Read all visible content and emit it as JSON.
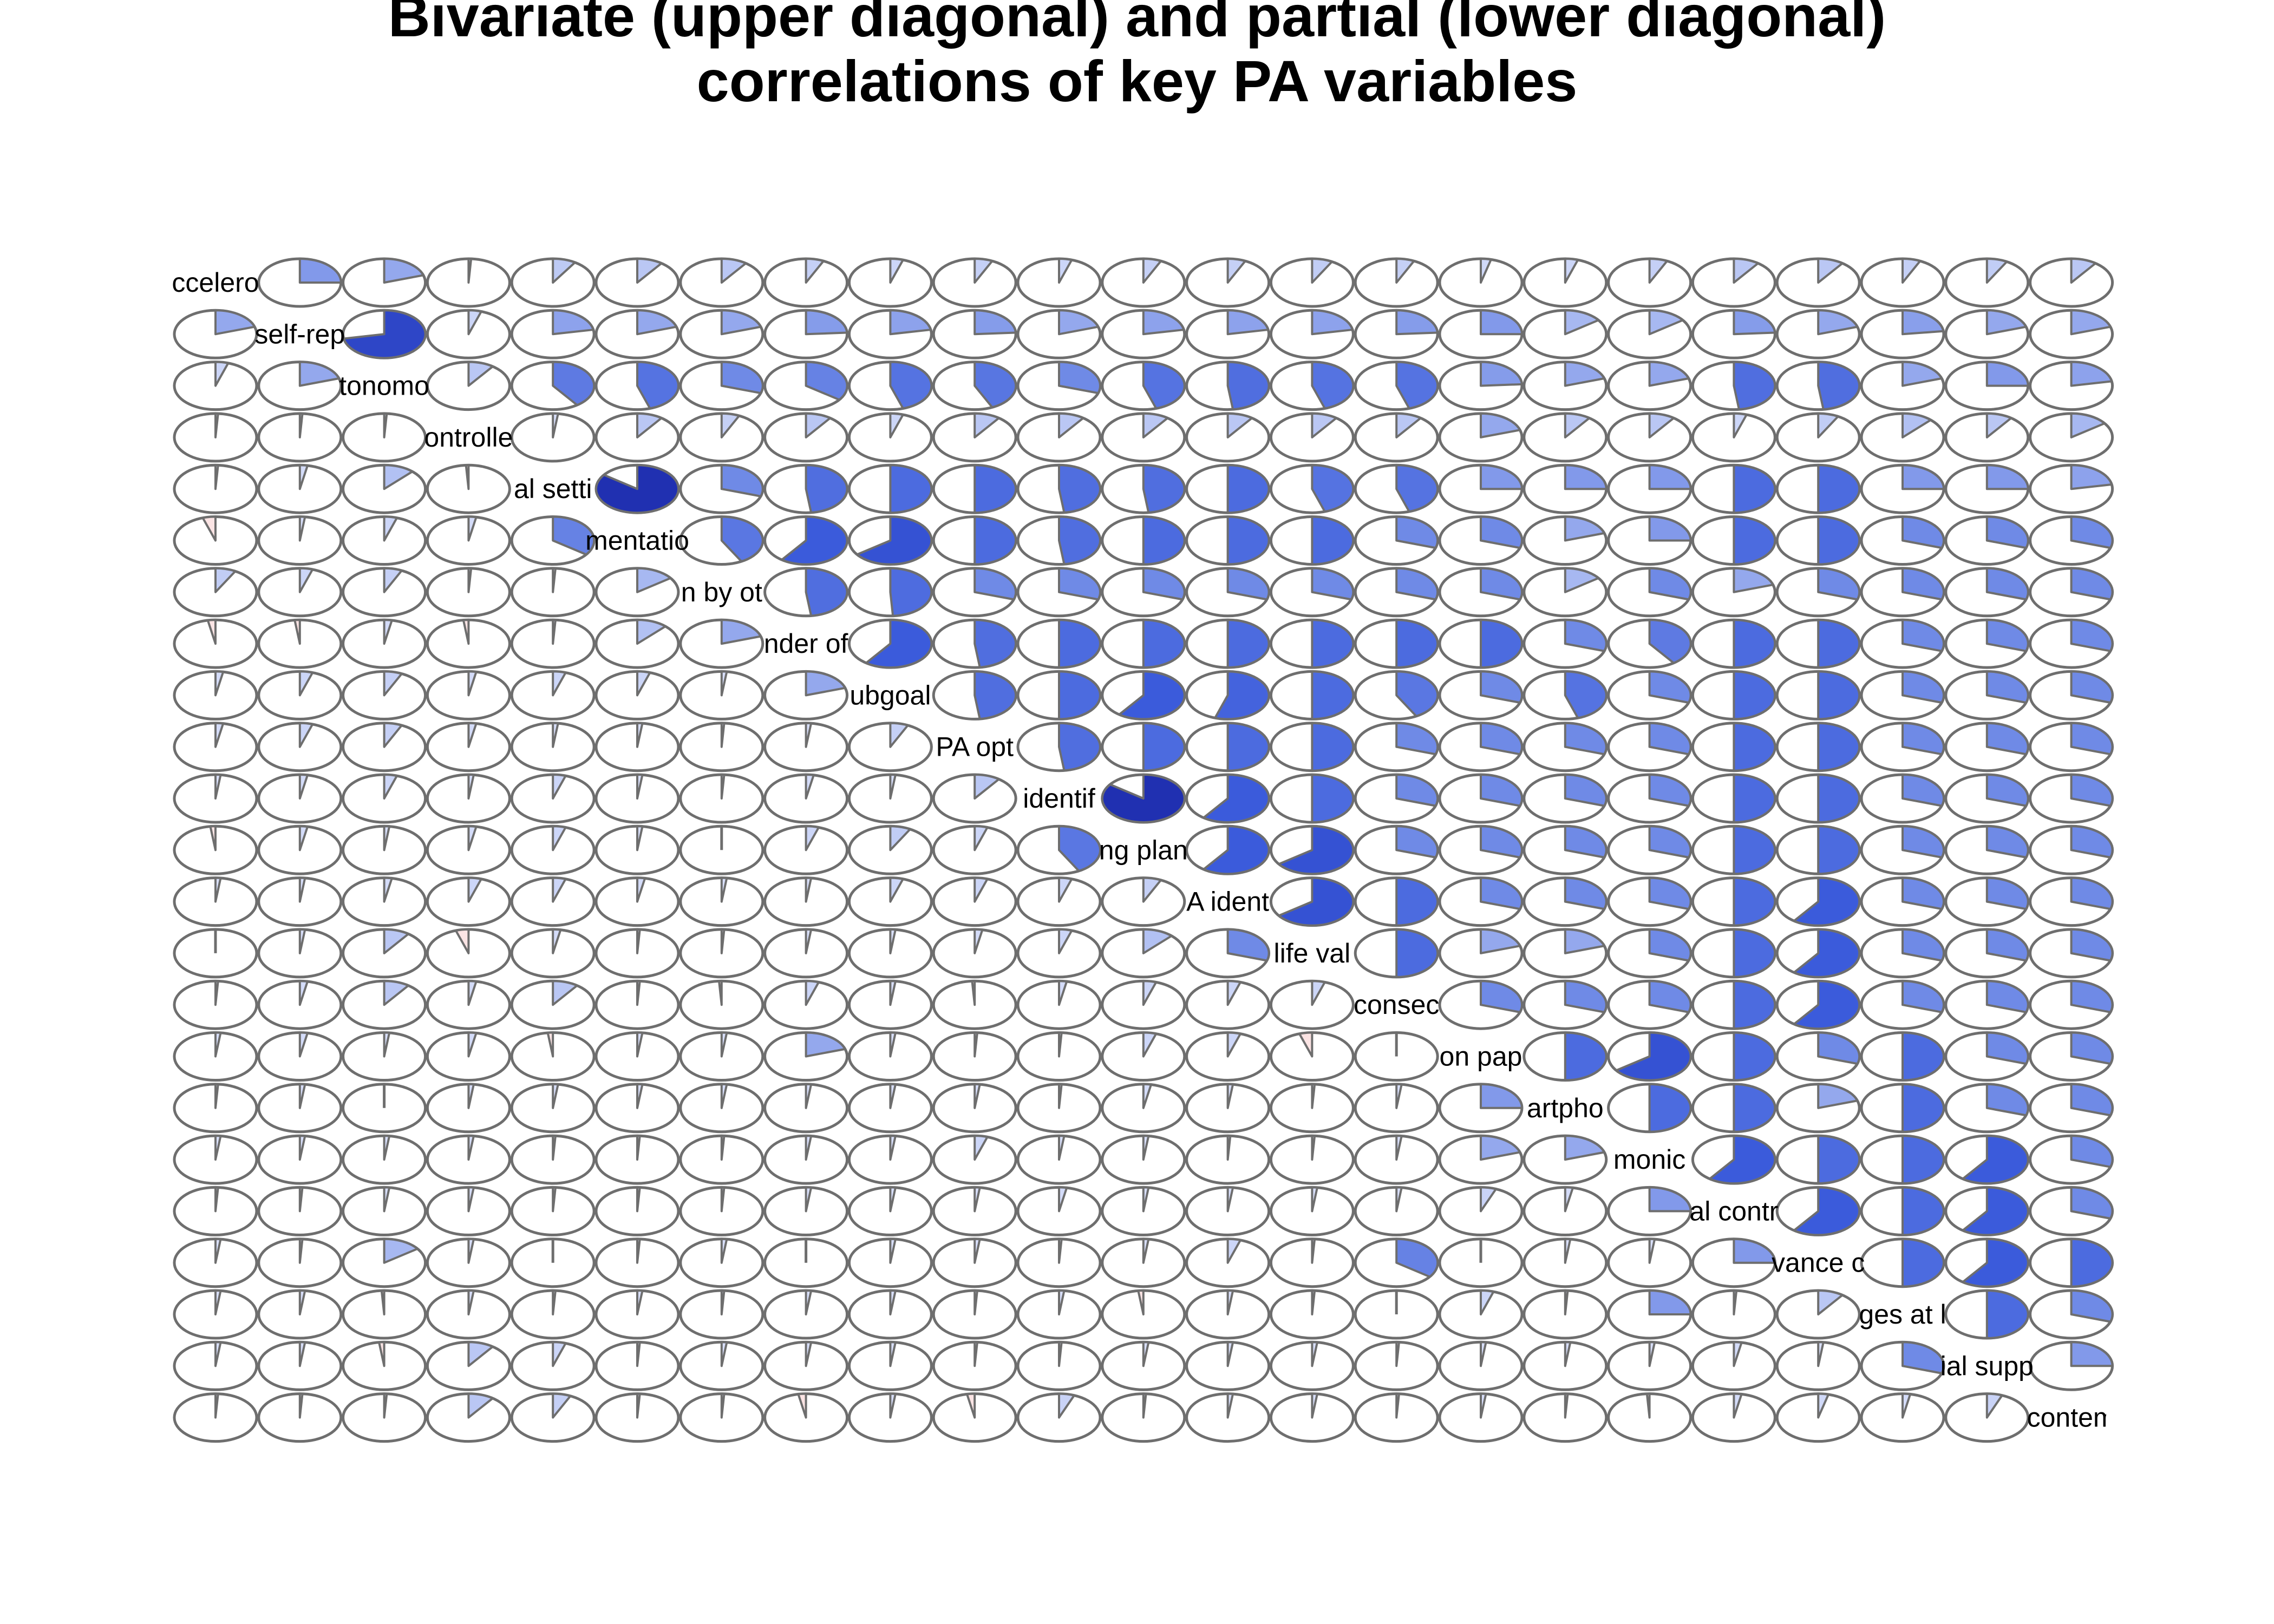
{
  "chart_data": {
    "type": "corrgram-pie",
    "title": [
      "Bivariate (upper diagonal) and partial (lower diagonal)",
      "correlations of key PA variables"
    ],
    "variables": [
      "ccelero",
      "self-rep",
      "tonomo",
      "ontrolle",
      "al setti",
      "mentatio",
      "n by ot",
      "nder of",
      "ubgoal",
      "PA opt",
      "identif",
      "ng plan",
      "A ident",
      "life val",
      "consec",
      "on pap",
      "artpho",
      "monic",
      "al contr",
      "vance c",
      "ges at l",
      "ial supp",
      "contem"
    ],
    "upper_triangle_note": "bivariate correlation; row i, entry k = variable i vs variable i+1+k",
    "upper": [
      [
        0.25,
        0.2,
        0.01,
        0.09,
        0.1,
        0.1,
        0.07,
        0.05,
        0.07,
        0.05,
        0.07,
        0.07,
        0.08,
        0.07,
        0.04,
        0.05,
        0.07,
        0.1,
        0.1,
        0.07,
        0.08,
        0.1
      ],
      [
        0.72,
        0.05,
        0.22,
        0.2,
        0.2,
        0.24,
        0.22,
        0.24,
        0.2,
        0.22,
        0.22,
        0.22,
        0.24,
        0.25,
        0.15,
        0.15,
        0.24,
        0.2,
        0.23,
        0.2,
        0.2,
        0.2
      ],
      [
        0.1,
        0.4,
        0.45,
        0.3,
        0.35,
        0.45,
        0.43,
        0.3,
        0.45,
        0.48,
        0.45,
        0.45,
        0.24,
        0.2,
        0.2,
        0.48,
        0.48,
        0.2,
        0.25,
        0.22,
        0.22
      ],
      [
        0.02,
        0.1,
        0.07,
        0.1,
        0.05,
        0.1,
        0.1,
        0.1,
        0.1,
        0.1,
        0.1,
        0.2,
        0.1,
        0.1,
        0.05,
        0.08,
        0.12,
        0.1,
        0.15,
        0.15,
        0.25
      ],
      [
        0.85,
        0.3,
        0.48,
        0.5,
        0.5,
        0.48,
        0.48,
        0.5,
        0.45,
        0.45,
        0.25,
        0.25,
        0.25,
        0.5,
        0.5,
        0.25,
        0.25,
        0.22,
        0.25
      ],
      [
        0.42,
        0.6,
        0.65,
        0.5,
        0.48,
        0.5,
        0.5,
        0.5,
        0.3,
        0.3,
        0.2,
        0.25,
        0.5,
        0.5,
        0.3,
        0.3,
        0.3,
        0.3
      ],
      [
        0.48,
        0.49,
        0.3,
        0.3,
        0.3,
        0.3,
        0.3,
        0.3,
        0.3,
        0.15,
        0.3,
        0.2,
        0.3,
        0.3,
        0.3,
        0.3,
        0.22
      ],
      [
        0.6,
        0.48,
        0.5,
        0.5,
        0.5,
        0.5,
        0.5,
        0.5,
        0.3,
        0.4,
        0.5,
        0.5,
        0.3,
        0.3,
        0.3,
        0.3
      ],
      [
        0.48,
        0.5,
        0.6,
        0.55,
        0.5,
        0.42,
        0.3,
        0.45,
        0.3,
        0.5,
        0.5,
        0.3,
        0.3,
        0.3,
        0.3
      ],
      [
        0.48,
        0.5,
        0.5,
        0.5,
        0.3,
        0.3,
        0.3,
        0.3,
        0.5,
        0.5,
        0.3,
        0.3,
        0.3,
        0.2
      ],
      [
        0.85,
        0.6,
        0.5,
        0.3,
        0.3,
        0.3,
        0.3,
        0.5,
        0.5,
        0.3,
        0.3,
        0.3,
        0.3
      ],
      [
        0.6,
        0.65,
        0.3,
        0.3,
        0.3,
        0.3,
        0.5,
        0.5,
        0.3,
        0.3,
        0.3,
        0.3
      ],
      [
        0.65,
        0.5,
        0.3,
        0.3,
        0.3,
        0.5,
        0.6,
        0.3,
        0.3,
        0.3,
        0.3
      ],
      [
        0.5,
        0.2,
        0.2,
        0.3,
        0.5,
        0.6,
        0.3,
        0.3,
        0.3,
        0.3
      ],
      [
        0.3,
        0.3,
        0.3,
        0.5,
        0.6,
        0.3,
        0.3,
        0.3,
        0.3
      ],
      [
        0.5,
        0.65,
        0.5,
        0.3,
        0.5,
        0.3,
        0.3,
        0.3
      ],
      [
        0.5,
        0.5,
        0.2,
        0.5,
        0.3,
        0.3,
        0.2
      ],
      [
        0.6,
        0.5,
        0.5,
        0.6,
        0.3
      ],
      [
        0.6,
        0.5,
        0.6,
        0.3
      ],
      [
        0.5,
        0.6,
        0.5
      ],
      [
        0.5,
        0.3
      ],
      [
        0.25
      ]
    ],
    "lower_triangle_note": "partial correlation; row i, entry j = variable i vs variable j (j < i)",
    "lower": [
      [],
      [
        0.2
      ],
      [
        0.05,
        0.2
      ],
      [
        0.01,
        0.01,
        0.01
      ],
      [
        0.01,
        0.03,
        0.12,
        -0.01
      ],
      [
        -0.05,
        0.02,
        0.05,
        0.03,
        0.35
      ],
      [
        0.08,
        0.05,
        0.07,
        0.01,
        0.01,
        0.15
      ],
      [
        -0.03,
        -0.02,
        0.03,
        -0.02,
        0.01,
        0.12,
        0.2
      ],
      [
        0.03,
        0.05,
        0.07,
        0.03,
        0.05,
        0.05,
        0.02,
        0.2
      ],
      [
        0.03,
        0.05,
        0.07,
        0.03,
        0.02,
        0.02,
        0.01,
        0.02,
        0.07
      ],
      [
        0.02,
        0.03,
        0.05,
        0.02,
        0.05,
        0.02,
        0.01,
        0.03,
        0.02,
        0.1
      ],
      [
        -0.02,
        0.03,
        0.02,
        0.03,
        0.05,
        0.02,
        0.0,
        0.05,
        0.08,
        0.05,
        0.42
      ],
      [
        0.02,
        0.02,
        0.03,
        0.05,
        0.05,
        0.03,
        0.02,
        0.02,
        0.05,
        0.05,
        0.05,
        0.07
      ],
      [
        0.0,
        0.02,
        0.1,
        -0.05,
        0.03,
        0.01,
        0.01,
        0.02,
        0.02,
        0.03,
        0.05,
        0.12,
        0.3
      ],
      [
        0.01,
        0.03,
        0.1,
        0.03,
        0.1,
        0.01,
        -0.01,
        0.05,
        0.02,
        -0.01,
        0.03,
        0.05,
        0.05,
        0.05
      ],
      [
        0.02,
        0.03,
        0.02,
        0.03,
        -0.02,
        0.02,
        0.02,
        0.2,
        0.02,
        0.01,
        0.01,
        0.05,
        0.05,
        -0.05,
        0.0
      ],
      [
        0.01,
        0.02,
        0.0,
        0.02,
        0.02,
        0.02,
        0.02,
        0.02,
        0.02,
        0.02,
        0.01,
        0.03,
        0.02,
        0.01,
        0.02,
        0.25
      ],
      [
        0.02,
        0.02,
        0.02,
        0.02,
        0.01,
        0.01,
        0.01,
        0.02,
        0.02,
        0.05,
        0.02,
        0.02,
        0.01,
        0.01,
        0.02,
        0.2,
        0.2
      ],
      [
        0.01,
        0.01,
        0.02,
        0.02,
        0.01,
        0.01,
        0.01,
        0.02,
        0.02,
        0.02,
        0.03,
        0.02,
        0.02,
        0.02,
        0.02,
        0.06,
        0.03,
        0.25
      ],
      [
        0.02,
        0.01,
        0.15,
        0.02,
        0.0,
        0.01,
        0.02,
        0.0,
        0.02,
        0.02,
        0.01,
        0.02,
        0.05,
        0.01,
        0.35,
        0.0,
        0.02,
        0.02,
        0.25
      ],
      [
        0.02,
        0.02,
        -0.01,
        0.02,
        0.01,
        0.02,
        0.01,
        0.02,
        0.02,
        0.01,
        0.02,
        -0.02,
        0.02,
        0.01,
        0.0,
        0.05,
        0.01,
        0.25,
        0.01,
        0.1
      ],
      [
        0.02,
        0.02,
        -0.02,
        0.1,
        0.05,
        0.01,
        0.02,
        0.02,
        0.02,
        0.01,
        0.01,
        0.02,
        0.02,
        0.02,
        0.01,
        0.02,
        0.02,
        0.02,
        0.03,
        0.02,
        0.3
      ],
      [
        0.01,
        0.01,
        0.01,
        0.1,
        0.07,
        0.01,
        0.01,
        -0.03,
        0.02,
        -0.03,
        0.06,
        0.01,
        0.02,
        0.02,
        0.01,
        0.02,
        0.01,
        -0.01,
        0.03,
        0.04,
        0.03,
        0.06
      ]
    ],
    "colors": {
      "positive_light": "#dfe5fb",
      "positive_mid": "#6f8ae6",
      "positive_strong": "#3b5bdb",
      "positive_max": "#1a27a8",
      "negative_light": "#fbe4e4",
      "outline": "#6e6e6e",
      "background": "#ffffff"
    }
  }
}
